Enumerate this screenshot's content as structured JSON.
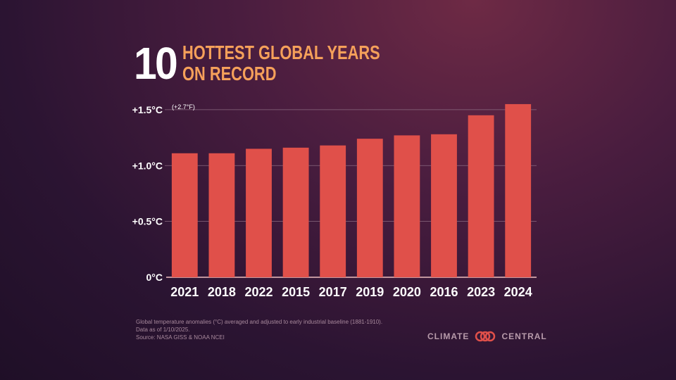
{
  "title": {
    "number": "10",
    "line1": "HOTTEST GLOBAL YEARS",
    "line2": "ON RECORD"
  },
  "chart_data": {
    "type": "bar",
    "categories": [
      "2021",
      "2018",
      "2022",
      "2015",
      "2017",
      "2019",
      "2020",
      "2016",
      "2023",
      "2024"
    ],
    "values": [
      1.11,
      1.11,
      1.15,
      1.16,
      1.18,
      1.24,
      1.27,
      1.28,
      1.45,
      1.55
    ],
    "ylim": [
      0,
      1.6
    ],
    "yticks": [
      {
        "value": 0,
        "label": "0°C"
      },
      {
        "value": 0.5,
        "label": "+0.5°C"
      },
      {
        "value": 1.0,
        "label": "+1.0°C"
      },
      {
        "value": 1.5,
        "label": "+1.5°C"
      }
    ],
    "annotation": "(+2.7°F)",
    "grid": true,
    "bar_color": "#e0504a"
  },
  "footnote": {
    "line1": "Global temperature anomalies (°C) averaged and adjusted to early industrial baseline (1881-1910).",
    "line2": "Data as of 1/10/2025.",
    "line3": "Source: NASA GISS & NOAA NCEI"
  },
  "logo": {
    "left": "CLIMATE",
    "right": "CENTRAL"
  }
}
